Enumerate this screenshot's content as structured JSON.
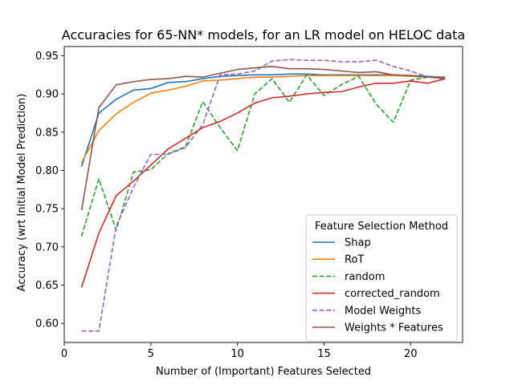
{
  "chart_data": {
    "type": "line",
    "title": "Accuracies for 65-NN* models, for an LR model on HELOC data",
    "xlabel": "Number of (Important) Features Selected",
    "ylabel": "Accuracy (wrt Initial Model Prediction)",
    "xlim": [
      0,
      23
    ],
    "ylim": [
      0.575,
      0.962
    ],
    "xticks": [
      0,
      5,
      10,
      15,
      20
    ],
    "yticks": [
      0.6,
      0.65,
      0.7,
      0.75,
      0.8,
      0.85,
      0.9,
      0.95
    ],
    "grid": false,
    "legend": {
      "title": "Feature Selection Method",
      "placement": "lower-right"
    },
    "x": [
      1,
      2,
      3,
      4,
      5,
      6,
      7,
      8,
      9,
      10,
      11,
      12,
      13,
      14,
      15,
      16,
      17,
      18,
      19,
      20,
      21,
      22
    ],
    "series": [
      {
        "name": "Shap",
        "color": "#1f77b4",
        "dash": "solid",
        "values": [
          0.805,
          0.875,
          0.893,
          0.905,
          0.907,
          0.915,
          0.916,
          0.92,
          0.923,
          0.924,
          0.925,
          0.925,
          0.926,
          0.926,
          0.925,
          0.925,
          0.925,
          0.925,
          0.925,
          0.924,
          0.923,
          0.922
        ]
      },
      {
        "name": "RoT",
        "color": "#ff7f0e",
        "dash": "solid",
        "values": [
          0.81,
          0.852,
          0.874,
          0.889,
          0.901,
          0.905,
          0.91,
          0.917,
          0.918,
          0.92,
          0.922,
          0.922,
          0.923,
          0.924,
          0.924,
          0.924,
          0.924,
          0.924,
          0.924,
          0.923,
          0.922,
          0.922
        ]
      },
      {
        "name": "random",
        "color": "#2ca02c",
        "dash": "dashed",
        "values": [
          0.714,
          0.789,
          0.722,
          0.798,
          0.801,
          0.822,
          0.831,
          0.89,
          0.856,
          0.826,
          0.9,
          0.92,
          0.889,
          0.925,
          0.898,
          0.912,
          0.923,
          0.887,
          0.863,
          0.918,
          0.922,
          0.921
        ]
      },
      {
        "name": "corrected_random",
        "color": "#d62728",
        "dash": "solid",
        "values": [
          0.647,
          0.718,
          0.767,
          0.786,
          0.807,
          0.828,
          0.842,
          0.856,
          0.864,
          0.875,
          0.888,
          0.895,
          0.897,
          0.9,
          0.902,
          0.903,
          0.909,
          0.914,
          0.914,
          0.917,
          0.914,
          0.92
        ]
      },
      {
        "name": "Model Weights",
        "color": "#9467bd",
        "dash": "dashed",
        "values": [
          0.59,
          0.59,
          0.727,
          0.778,
          0.821,
          0.821,
          0.83,
          0.86,
          0.925,
          0.926,
          0.93,
          0.943,
          0.945,
          0.944,
          0.944,
          0.942,
          0.942,
          0.944,
          0.936,
          0.93,
          0.922,
          0.922
        ]
      },
      {
        "name": "Weights * Features",
        "color": "#8c564b",
        "dash": "solid",
        "values": [
          0.748,
          0.882,
          0.912,
          0.916,
          0.919,
          0.92,
          0.923,
          0.922,
          0.927,
          0.932,
          0.934,
          0.936,
          0.933,
          0.933,
          0.932,
          0.93,
          0.928,
          0.929,
          0.925,
          0.924,
          0.922,
          0.92
        ]
      }
    ]
  }
}
